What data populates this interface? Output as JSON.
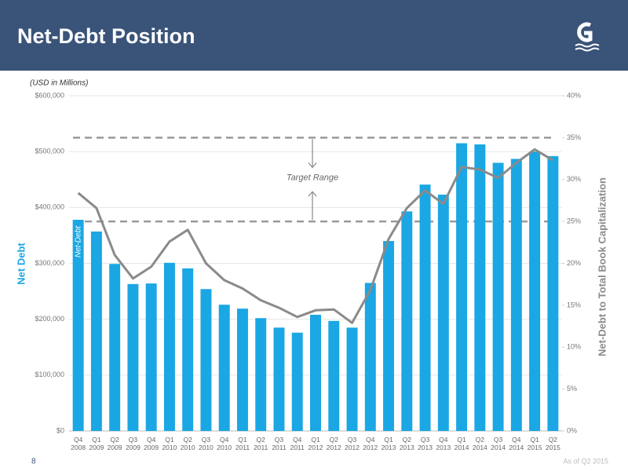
{
  "chart_data": {
    "type": "bar-line",
    "title": "Net-Debt Position",
    "subtitle": "(USD in Millions)",
    "y_label": "Net Debt",
    "y2_label": "Net-Debt to Total Book Capitalization",
    "bar_annotation": "Net-Debt",
    "target_label": "Target Range",
    "target_range": [
      25,
      35
    ],
    "page_number": "8",
    "date_note": "As of Q2 2015",
    "categories": [
      "Q4 2008",
      "Q1 2009",
      "Q2 2009",
      "Q3 2009",
      "Q4 2009",
      "Q1 2010",
      "Q2 2010",
      "Q3 2010",
      "Q4 2010",
      "Q1 2011",
      "Q2 2011",
      "Q3 2011",
      "Q4 2011",
      "Q1 2012",
      "Q2 2012",
      "Q3 2012",
      "Q4 2012",
      "Q1 2013",
      "Q2 2013",
      "Q3 2013",
      "Q4 2013",
      "Q1 2014",
      "Q2 2014",
      "Q3 2014",
      "Q4 2014",
      "Q1 2015",
      "Q2 2015"
    ],
    "series": [
      {
        "name": "Net Debt",
        "type": "bar",
        "color": "#1aa7e3",
        "values": [
          378000,
          357000,
          299000,
          263000,
          264000,
          301000,
          291000,
          254000,
          226000,
          219000,
          202000,
          185000,
          176000,
          208000,
          197000,
          185000,
          265000,
          340000,
          393000,
          441000,
          423000,
          515000,
          513000,
          480000,
          487000,
          500000,
          492000
        ]
      },
      {
        "name": "Net-Debt to Total Book Capitalization",
        "type": "line",
        "axis": "y2",
        "color": "#8a8a8a",
        "values": [
          28.4,
          26.6,
          21.0,
          18.2,
          19.6,
          22.6,
          24.0,
          20.0,
          18.0,
          17.0,
          15.6,
          14.7,
          13.6,
          14.4,
          14.5,
          12.9,
          16.8,
          22.9,
          26.6,
          28.7,
          27.1,
          31.5,
          31.2,
          30.2,
          32.0,
          33.6,
          32.3
        ]
      }
    ],
    "ylim": [
      0,
      600000
    ],
    "yticks": [
      {
        "value": 0,
        "label": "$0"
      },
      {
        "value": 100000,
        "label": "$100,000"
      },
      {
        "value": 200000,
        "label": "$200,000"
      },
      {
        "value": 300000,
        "label": "$300,000"
      },
      {
        "value": 400000,
        "label": "$400,000"
      },
      {
        "value": 500000,
        "label": "$500,000"
      },
      {
        "value": 600000,
        "label": "$600,000"
      }
    ],
    "y2lim": [
      0,
      40
    ],
    "y2ticks": [
      {
        "value": 0,
        "label": "0%"
      },
      {
        "value": 5,
        "label": "5%"
      },
      {
        "value": 10,
        "label": "10%"
      },
      {
        "value": 15,
        "label": "15%"
      },
      {
        "value": 20,
        "label": "20%"
      },
      {
        "value": 25,
        "label": "25%"
      },
      {
        "value": 30,
        "label": "30%"
      },
      {
        "value": 35,
        "label": "35%"
      },
      {
        "value": 40,
        "label": "40%"
      }
    ],
    "grid": true
  }
}
